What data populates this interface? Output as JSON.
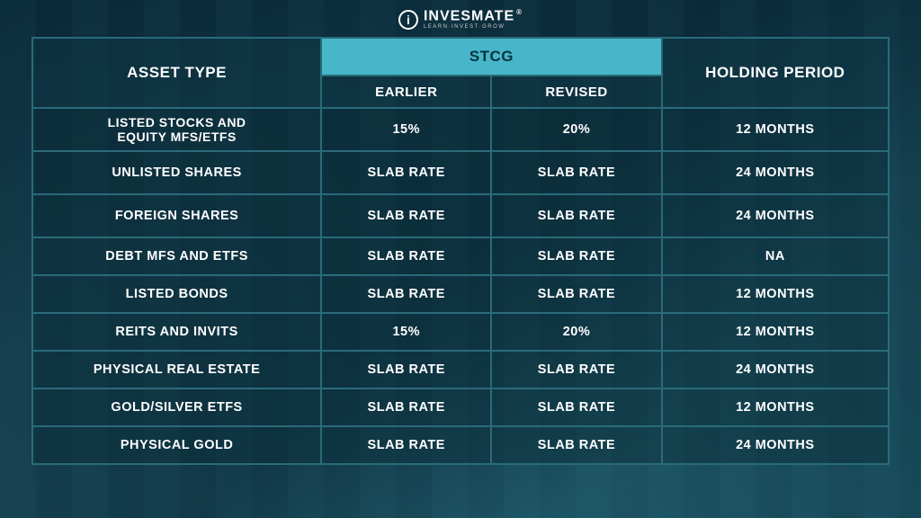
{
  "brand": {
    "name": "INVESMATE",
    "tagline": "LEARN·INVEST·GROW",
    "mark": "®",
    "icon": "i"
  },
  "headers": {
    "asset_type": "ASSET TYPE",
    "stcg": "STCG",
    "earlier": "EARLIER",
    "revised": "REVISED",
    "holding": "HOLDING PERIOD"
  },
  "colors": {
    "stcg_header_bg": "#47b6c9",
    "border": "#2a6b7a",
    "text": "#ffffff"
  },
  "rows": [
    {
      "asset": "LISTED STOCKS AND EQUITY MFS/ETFS",
      "earlier": "15%",
      "revised": "20%",
      "holding": "12 MONTHS",
      "tall": true,
      "two_line": true
    },
    {
      "asset": "UNLISTED SHARES",
      "earlier": "SLAB RATE",
      "revised": "SLAB RATE",
      "holding": "24 MONTHS",
      "tall": true
    },
    {
      "asset": "FOREIGN SHARES",
      "earlier": "SLAB RATE",
      "revised": "SLAB RATE",
      "holding": "24 MONTHS",
      "tall": true
    },
    {
      "asset": "DEBT MFS AND ETFS",
      "earlier": "SLAB RATE",
      "revised": "SLAB RATE",
      "holding": "NA",
      "tall": false
    },
    {
      "asset": "LISTED BONDS",
      "earlier": "SLAB RATE",
      "revised": "SLAB RATE",
      "holding": "12 MONTHS",
      "tall": false
    },
    {
      "asset": "REITS AND INVITS",
      "earlier": "15%",
      "revised": "20%",
      "holding": "12 MONTHS",
      "tall": false
    },
    {
      "asset": "PHYSICAL REAL ESTATE",
      "earlier": "SLAB RATE",
      "revised": "SLAB RATE",
      "holding": "24 MONTHS",
      "tall": false
    },
    {
      "asset": "GOLD/SILVER ETFS",
      "earlier": "SLAB RATE",
      "revised": "SLAB RATE",
      "holding": "12 MONTHS",
      "tall": false
    },
    {
      "asset": "PHYSICAL GOLD",
      "earlier": "SLAB RATE",
      "revised": "SLAB RATE",
      "holding": "24 MONTHS",
      "tall": false
    }
  ]
}
